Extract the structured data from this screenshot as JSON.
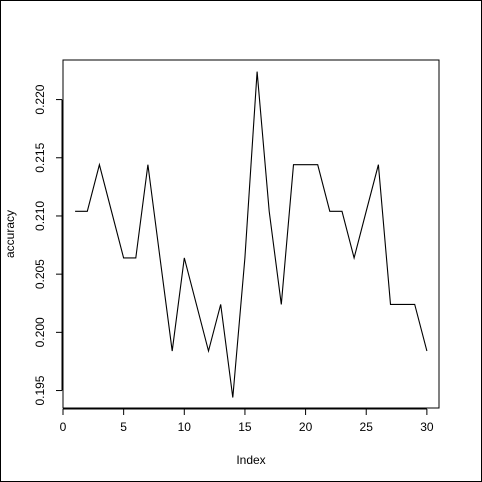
{
  "chart_data": {
    "type": "line",
    "title": "",
    "xlabel": "Index",
    "ylabel": "accuracy",
    "xlim": [
      0,
      31
    ],
    "ylim": [
      0.1935,
      0.2234
    ],
    "xticks": [
      0,
      5,
      10,
      15,
      20,
      25,
      30
    ],
    "xtick_labels": [
      "0",
      "5",
      "10",
      "15",
      "20",
      "25",
      "30"
    ],
    "yticks": [
      0.195,
      0.2,
      0.205,
      0.21,
      0.215,
      0.22
    ],
    "ytick_labels": [
      "0.195",
      "0.200",
      "0.205",
      "0.210",
      "0.215",
      "0.220"
    ],
    "grid": false,
    "series": [
      {
        "color": "#000000",
        "x": [
          1,
          2,
          3,
          4,
          5,
          6,
          7,
          8,
          9,
          10,
          11,
          12,
          13,
          14,
          15,
          16,
          17,
          18,
          19,
          20,
          21,
          22,
          23,
          24,
          25,
          26,
          27,
          28,
          29,
          30
        ],
        "values": [
          0.2104,
          0.2104,
          0.2144,
          0.2104,
          0.2064,
          0.2064,
          0.2144,
          0.2064,
          0.1984,
          0.2064,
          0.2024,
          0.1984,
          0.2024,
          0.1944,
          0.2064,
          0.2224,
          0.2104,
          0.2024,
          0.2144,
          0.2144,
          0.2144,
          0.2104,
          0.2104,
          0.2064,
          0.2104,
          0.2144,
          0.2024,
          0.2024,
          0.2024,
          0.1984
        ]
      }
    ]
  }
}
